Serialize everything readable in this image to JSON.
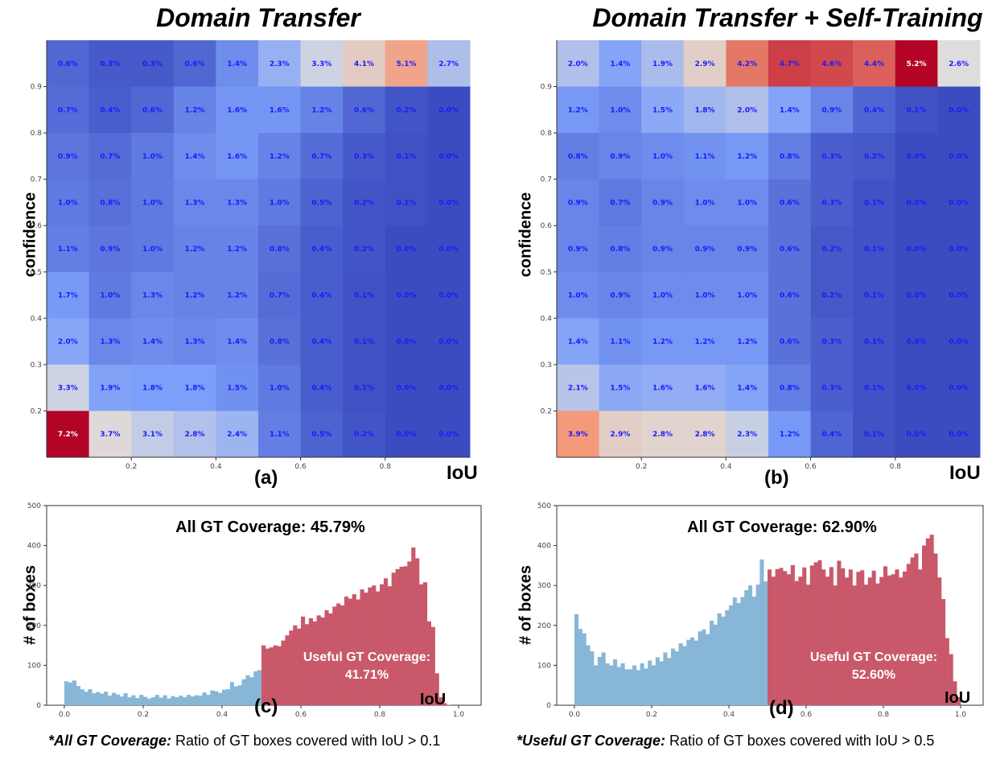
{
  "chart_data": [
    {
      "type": "heatmap",
      "title": "Domain Transfer",
      "panel_label": "(a)",
      "xlabel": "IoU",
      "ylabel": "confidence",
      "x_ticks": [
        "0.2",
        "0.4",
        "0.6",
        "0.8"
      ],
      "y_ticks": [
        "0.9",
        "0.8",
        "0.7",
        "0.6",
        "0.5",
        "0.4",
        "0.3",
        "0.2"
      ],
      "max_value": 7.2,
      "rows": [
        [
          "0.6%",
          "0.3%",
          "0.3%",
          "0.6%",
          "1.4%",
          "2.3%",
          "3.3%",
          "4.1%",
          "5.1%",
          "2.7%"
        ],
        [
          "0.7%",
          "0.4%",
          "0.6%",
          "1.2%",
          "1.6%",
          "1.6%",
          "1.2%",
          "0.6%",
          "0.2%",
          "0.0%"
        ],
        [
          "0.9%",
          "0.7%",
          "1.0%",
          "1.4%",
          "1.6%",
          "1.2%",
          "0.7%",
          "0.3%",
          "0.1%",
          "0.0%"
        ],
        [
          "1.0%",
          "0.8%",
          "1.0%",
          "1.3%",
          "1.3%",
          "1.0%",
          "0.5%",
          "0.2%",
          "0.1%",
          "0.0%"
        ],
        [
          "1.1%",
          "0.9%",
          "1.0%",
          "1.2%",
          "1.2%",
          "0.8%",
          "0.4%",
          "0.2%",
          "0.0%",
          "0.0%"
        ],
        [
          "1.7%",
          "1.0%",
          "1.3%",
          "1.2%",
          "1.2%",
          "0.7%",
          "0.4%",
          "0.1%",
          "0.0%",
          "0.0%"
        ],
        [
          "2.0%",
          "1.3%",
          "1.4%",
          "1.3%",
          "1.4%",
          "0.8%",
          "0.4%",
          "0.1%",
          "0.0%",
          "0.0%"
        ],
        [
          "3.3%",
          "1.9%",
          "1.8%",
          "1.8%",
          "1.5%",
          "1.0%",
          "0.4%",
          "0.1%",
          "0.0%",
          "0.0%"
        ],
        [
          "7.2%",
          "3.7%",
          "3.1%",
          "2.8%",
          "2.4%",
          "1.1%",
          "0.5%",
          "0.2%",
          "0.0%",
          "0.0%"
        ]
      ]
    },
    {
      "type": "heatmap",
      "title": "Domain Transfer + Self-Training",
      "panel_label": "(b)",
      "xlabel": "IoU",
      "ylabel": "confidence",
      "x_ticks": [
        "0.2",
        "0.4",
        "0.6",
        "0.8"
      ],
      "y_ticks": [
        "0.9",
        "0.8",
        "0.7",
        "0.6",
        "0.5",
        "0.4",
        "0.3",
        "0.2"
      ],
      "max_value": 5.2,
      "rows": [
        [
          "2.0%",
          "1.4%",
          "1.9%",
          "2.9%",
          "4.2%",
          "4.7%",
          "4.6%",
          "4.4%",
          "5.2%",
          "2.6%"
        ],
        [
          "1.2%",
          "1.0%",
          "1.5%",
          "1.8%",
          "2.0%",
          "1.4%",
          "0.9%",
          "0.4%",
          "0.1%",
          "0.0%"
        ],
        [
          "0.8%",
          "0.9%",
          "1.0%",
          "1.1%",
          "1.2%",
          "0.8%",
          "0.3%",
          "0.2%",
          "0.0%",
          "0.0%"
        ],
        [
          "0.9%",
          "0.7%",
          "0.9%",
          "1.0%",
          "1.0%",
          "0.6%",
          "0.3%",
          "0.1%",
          "0.0%",
          "0.0%"
        ],
        [
          "0.9%",
          "0.8%",
          "0.9%",
          "0.9%",
          "0.9%",
          "0.6%",
          "0.2%",
          "0.1%",
          "0.0%",
          "0.0%"
        ],
        [
          "1.0%",
          "0.9%",
          "1.0%",
          "1.0%",
          "1.0%",
          "0.6%",
          "0.2%",
          "0.1%",
          "0.0%",
          "0.0%"
        ],
        [
          "1.4%",
          "1.1%",
          "1.2%",
          "1.2%",
          "1.2%",
          "0.6%",
          "0.3%",
          "0.1%",
          "0.0%",
          "0.0%"
        ],
        [
          "2.1%",
          "1.5%",
          "1.6%",
          "1.6%",
          "1.4%",
          "0.8%",
          "0.3%",
          "0.1%",
          "0.0%",
          "0.0%"
        ],
        [
          "3.9%",
          "2.9%",
          "2.8%",
          "2.8%",
          "2.3%",
          "1.2%",
          "0.4%",
          "0.1%",
          "0.0%",
          "0.0%"
        ]
      ]
    },
    {
      "type": "bar",
      "subtype": "histogram",
      "panel_label": "(c)",
      "xlabel": "IoU",
      "ylabel": "# of boxes",
      "xlim": [
        0,
        1
      ],
      "ylim": [
        0,
        500
      ],
      "x_ticks": [
        "0.0",
        "0.2",
        "0.4",
        "0.6",
        "0.8",
        "1.0"
      ],
      "y_ticks": [
        "0",
        "100",
        "200",
        "300",
        "400",
        "500"
      ],
      "bin_width": 0.01,
      "threshold": 0.5,
      "coverage_label": "All GT Coverage: 45.79%",
      "useful_label_line1": "Useful GT Coverage:",
      "useful_label_line2": "41.71%",
      "colors": {
        "low": "#88b6d6",
        "high": "#c9596a"
      },
      "values": [
        60,
        57,
        62,
        48,
        40,
        34,
        40,
        30,
        33,
        29,
        34,
        24,
        31,
        27,
        22,
        30,
        20,
        25,
        18,
        26,
        21,
        17,
        20,
        26,
        19,
        25,
        17,
        23,
        20,
        24,
        20,
        26,
        22,
        25,
        24,
        32,
        26,
        37,
        35,
        31,
        39,
        40,
        58,
        47,
        50,
        65,
        75,
        70,
        85,
        88,
        150,
        142,
        145,
        150,
        148,
        162,
        175,
        187,
        200,
        192,
        222,
        203,
        218,
        210,
        225,
        220,
        238,
        230,
        247,
        255,
        250,
        272,
        267,
        278,
        265,
        290,
        282,
        295,
        300,
        285,
        303,
        318,
        298,
        332,
        341,
        347,
        348,
        360,
        395,
        368,
        303,
        308,
        210,
        196,
        80,
        20,
        5,
        1,
        0,
        0
      ]
    },
    {
      "type": "bar",
      "subtype": "histogram",
      "panel_label": "(d)",
      "xlabel": "IoU",
      "ylabel": "# of boxes",
      "xlim": [
        0,
        1
      ],
      "ylim": [
        0,
        500
      ],
      "x_ticks": [
        "0.0",
        "0.2",
        "0.4",
        "0.6",
        "0.8",
        "1.0"
      ],
      "y_ticks": [
        "0",
        "100",
        "200",
        "300",
        "400",
        "500"
      ],
      "bin_width": 0.01,
      "threshold": 0.5,
      "coverage_label": "All GT Coverage: 62.90%",
      "useful_label_line1": "Useful GT Coverage:",
      "useful_label_line2": "52.60%",
      "colors": {
        "low": "#88b6d6",
        "high": "#c9596a"
      },
      "values": [
        228,
        191,
        180,
        150,
        135,
        100,
        121,
        132,
        105,
        100,
        115,
        96,
        105,
        90,
        90,
        100,
        88,
        105,
        92,
        112,
        100,
        120,
        110,
        132,
        118,
        142,
        135,
        155,
        148,
        164,
        170,
        162,
        185,
        190,
        178,
        212,
        202,
        230,
        222,
        238,
        250,
        270,
        256,
        271,
        288,
        300,
        272,
        302,
        365,
        310,
        340,
        322,
        341,
        344,
        336,
        328,
        351,
        311,
        322,
        345,
        302,
        350,
        358,
        363,
        340,
        322,
        346,
        300,
        362,
        343,
        320,
        340,
        300,
        334,
        338,
        302,
        320,
        337,
        305,
        321,
        348,
        325,
        328,
        340,
        320,
        335,
        354,
        370,
        380,
        340,
        400,
        418,
        427,
        380,
        320,
        266,
        168,
        128,
        60,
        20
      ]
    }
  ],
  "footnotes": {
    "left_bold": "*All GT Coverage:",
    "left_text": " Ratio of GT boxes covered with IoU > 0.1",
    "right_bold": "*Useful GT Coverage:",
    "right_text": " Ratio of GT boxes covered with IoU > 0.5"
  }
}
